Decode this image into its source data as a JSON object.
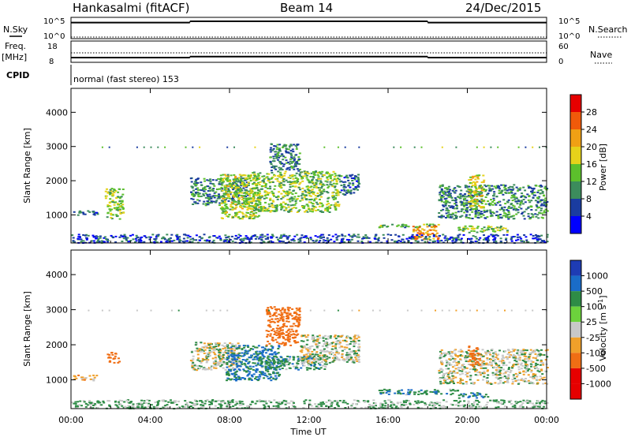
{
  "header": {
    "station": "Hankasalmi (fitACF)",
    "beam": "Beam 14",
    "date": "24/Dec/2015"
  },
  "nsky_panel": {
    "left_label": "N.Sky",
    "right_label": "N.Search",
    "left_ticks": [
      "10^5",
      "10^0"
    ],
    "right_ticks": [
      "10^5",
      "10^0"
    ],
    "nsky_levels": [
      {
        "from_hour": 0,
        "to_hour": 6,
        "value_log": 4.0
      },
      {
        "from_hour": 6,
        "to_hour": 18,
        "value_log": 4.35
      },
      {
        "from_hour": 18,
        "to_hour": 24,
        "value_log": 4.0
      }
    ]
  },
  "freq_panel": {
    "left_label": "Freq.",
    "left_unit": "[MHz]",
    "right_label": "Nave",
    "left_ticks": [
      "18",
      "8"
    ],
    "right_ticks": [
      "60",
      "0"
    ],
    "freq_levels": [
      {
        "from_hour": 0,
        "to_hour": 6,
        "value": 10.5
      },
      {
        "from_hour": 6,
        "to_hour": 18,
        "value": 11.0
      },
      {
        "from_hour": 18,
        "to_hour": 24,
        "value": 10.5
      }
    ],
    "nave_value": 30
  },
  "cpid": {
    "label": "CPID",
    "text": "normal (fast stereo) 153"
  },
  "axes": {
    "time_label": "Time UT",
    "time_ticks": [
      "00:00",
      "04:00",
      "08:00",
      "12:00",
      "16:00",
      "20:00",
      "00:00"
    ],
    "range_label": "Slant Range [km]",
    "range_ticks": [
      "1000",
      "2000",
      "3000",
      "4000"
    ],
    "range_ylim": [
      180,
      4700
    ],
    "time_xlim": [
      0,
      24
    ]
  },
  "chart_data": [
    {
      "type": "heatmap",
      "title": "Power [dB]",
      "ylabel": "Slant Range [km]",
      "xlabel": "Time UT",
      "colorbar_ticks": [
        "4",
        "8",
        "12",
        "16",
        "20",
        "24",
        "28"
      ],
      "colorbar_colors": [
        "#0000ff",
        "#1a3ca0",
        "#3c8c5c",
        "#5cc02c",
        "#e6d21a",
        "#f0a014",
        "#f05a0a",
        "#e60000"
      ],
      "scale_range": [
        0,
        30
      ],
      "echo_regions": [
        {
          "t0": 0.1,
          "t1": 1.3,
          "r0": 1000,
          "r1": 1150,
          "power_dB": 8
        },
        {
          "t0": 1.7,
          "t1": 2.6,
          "r0": 900,
          "r1": 1800,
          "power_dB": 14
        },
        {
          "t0": 6.0,
          "t1": 9.0,
          "r0": 1300,
          "r1": 2100,
          "power_dB": 10
        },
        {
          "t0": 7.5,
          "t1": 9.5,
          "r0": 900,
          "r1": 2200,
          "power_dB": 16
        },
        {
          "t0": 9.0,
          "t1": 13.5,
          "r0": 1100,
          "r1": 2300,
          "power_dB": 14
        },
        {
          "t0": 10.0,
          "t1": 11.5,
          "r0": 2300,
          "r1": 3100,
          "power_dB": 9
        },
        {
          "t0": 13.5,
          "t1": 14.5,
          "r0": 1600,
          "r1": 2200,
          "power_dB": 8
        },
        {
          "t0": 15.5,
          "t1": 18.5,
          "r0": 650,
          "r1": 750,
          "power_dB": 12
        },
        {
          "t0": 17.2,
          "t1": 18.5,
          "r0": 300,
          "r1": 700,
          "power_dB": 22
        },
        {
          "t0": 19.5,
          "t1": 22.0,
          "r0": 500,
          "r1": 700,
          "power_dB": 14
        },
        {
          "t0": 18.5,
          "t1": 24.0,
          "r0": 900,
          "r1": 1900,
          "power_dB": 10
        },
        {
          "t0": 20.0,
          "t1": 20.8,
          "r0": 1200,
          "r1": 2200,
          "power_dB": 18
        },
        {
          "t0": 0.0,
          "t1": 24.0,
          "r0": 200,
          "r1": 450,
          "power_dB": 6
        }
      ]
    },
    {
      "type": "heatmap",
      "title": "Velocity [m s^-1]",
      "ylabel": "Slant Range [km]",
      "xlabel": "Time UT",
      "colorbar_ticks": [
        "1000",
        "500",
        "100",
        "25",
        "-25",
        "-100",
        "-500",
        "-1000"
      ],
      "colorbar_colors": [
        "#1e3cb4",
        "#1a6cc8",
        "#2e8c46",
        "#6cd23c",
        "#c8c8c8",
        "#f0a02a",
        "#f06e14",
        "#e60000"
      ],
      "echo_regions": [
        {
          "t0": 0.1,
          "t1": 1.3,
          "r0": 1000,
          "r1": 1150,
          "velocity_ms": -60
        },
        {
          "t0": 1.8,
          "t1": 2.4,
          "r0": 1500,
          "r1": 1800,
          "velocity_ms": -400
        },
        {
          "t0": 6.0,
          "t1": 8.5,
          "r0": 1300,
          "r1": 2100,
          "velocity_ms": 0
        },
        {
          "t0": 7.8,
          "t1": 10.5,
          "r0": 1000,
          "r1": 2000,
          "velocity_ms": 120
        },
        {
          "t0": 9.5,
          "t1": 13.0,
          "r0": 1300,
          "r1": 1700,
          "velocity_ms": 60
        },
        {
          "t0": 9.8,
          "t1": 11.5,
          "r0": 2000,
          "r1": 3100,
          "velocity_ms": -200
        },
        {
          "t0": 11.5,
          "t1": 14.5,
          "r0": 1500,
          "r1": 2300,
          "velocity_ms": 0
        },
        {
          "t0": 15.5,
          "t1": 19.5,
          "r0": 600,
          "r1": 750,
          "velocity_ms": 80
        },
        {
          "t0": 19.5,
          "t1": 21.0,
          "r0": 500,
          "r1": 650,
          "velocity_ms": 90
        },
        {
          "t0": 18.5,
          "t1": 24.0,
          "r0": 900,
          "r1": 1900,
          "velocity_ms": 0
        },
        {
          "t0": 20.0,
          "t1": 20.6,
          "r0": 1400,
          "r1": 2000,
          "velocity_ms": -150
        },
        {
          "t0": 0.0,
          "t1": 24.0,
          "r0": 200,
          "r1": 450,
          "velocity_ms": 40
        }
      ]
    }
  ]
}
